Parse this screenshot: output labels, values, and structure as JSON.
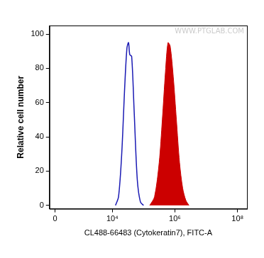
{
  "chart_data": {
    "type": "histogram",
    "x_label": "CL488-66483 (Cytokeratin7), FITC-A",
    "y_label": "Relative cell number",
    "annotations": [
      "WWW.PTGLAB.COM"
    ],
    "series": [
      {
        "color": "#1a1ab4",
        "type": "line",
        "x": [
          12600,
          15800,
          20000,
          25100,
          29500,
          33100,
          36300,
          41700,
          50100,
          63100,
          79400,
          100000
        ],
        "values": [
          0,
          5,
          30,
          70,
          92,
          95,
          88,
          87,
          55,
          15,
          2,
          0
        ]
      },
      {
        "color": "#cc0000",
        "type": "area",
        "x": [
          158000,
          224000,
          316000,
          398000,
          501000,
          603000,
          708000,
          891000,
          1120000,
          1410000,
          1780000,
          2240000,
          2820000
        ],
        "values": [
          0,
          5,
          25,
          50,
          78,
          95,
          93,
          75,
          50,
          25,
          10,
          3,
          0
        ]
      }
    ],
    "xlim": [
      -50,
      200000000
    ],
    "xticks": [
      0,
      {
        "value": 10000,
        "label": "10⁴"
      },
      {
        "value": 1000000,
        "label": "10⁶"
      },
      {
        "value": 100000000,
        "label": "10⁸"
      }
    ],
    "ylim": [
      -2,
      105
    ],
    "yticks": [
      0,
      20,
      40,
      60,
      80,
      100
    ],
    "grid": false
  }
}
